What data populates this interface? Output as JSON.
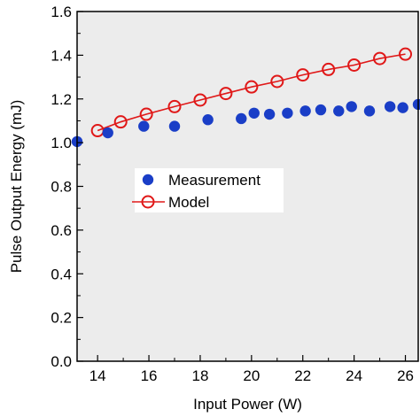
{
  "chart_data": {
    "type": "scatter",
    "title": "",
    "xlabel": "Input Power (W)",
    "ylabel": "Pulse Output Energy (mJ)",
    "xlim": [
      13.2,
      26.5
    ],
    "ylim": [
      0.0,
      1.6
    ],
    "x_ticks": [
      14,
      16,
      18,
      20,
      22,
      24,
      26
    ],
    "y_ticks": [
      0.0,
      0.2,
      0.4,
      0.6,
      0.8,
      1.0,
      1.2,
      1.4,
      1.6
    ],
    "x_tick_labels": [
      "14",
      "16",
      "18",
      "20",
      "22",
      "24",
      "26"
    ],
    "y_tick_labels": [
      "0.0",
      "0.2",
      "0.4",
      "0.6",
      "0.8",
      "1.0",
      "1.2",
      "1.4",
      "1.6"
    ],
    "plot_background": "#ececec",
    "grid": false,
    "legend_placement": "center-left",
    "series": [
      {
        "name": "Measurement",
        "marker": "filled-circle",
        "color": "#1a3ec7",
        "x": [
          13.2,
          14.4,
          15.8,
          17.0,
          18.3,
          19.6,
          20.1,
          20.7,
          21.4,
          22.1,
          22.7,
          23.4,
          23.9,
          24.6,
          25.4,
          25.9,
          26.5
        ],
        "y": [
          1.005,
          1.045,
          1.075,
          1.075,
          1.105,
          1.11,
          1.135,
          1.13,
          1.135,
          1.145,
          1.15,
          1.145,
          1.165,
          1.145,
          1.165,
          1.16,
          1.175
        ]
      },
      {
        "name": "Model",
        "marker": "open-circle-line",
        "color": "#e01818",
        "x": [
          14.0,
          14.9,
          15.9,
          17.0,
          18.0,
          19.0,
          20.0,
          21.0,
          22.0,
          23.0,
          24.0,
          25.0,
          26.0
        ],
        "y": [
          1.055,
          1.095,
          1.13,
          1.165,
          1.195,
          1.225,
          1.255,
          1.28,
          1.31,
          1.335,
          1.355,
          1.385,
          1.405
        ]
      }
    ]
  }
}
